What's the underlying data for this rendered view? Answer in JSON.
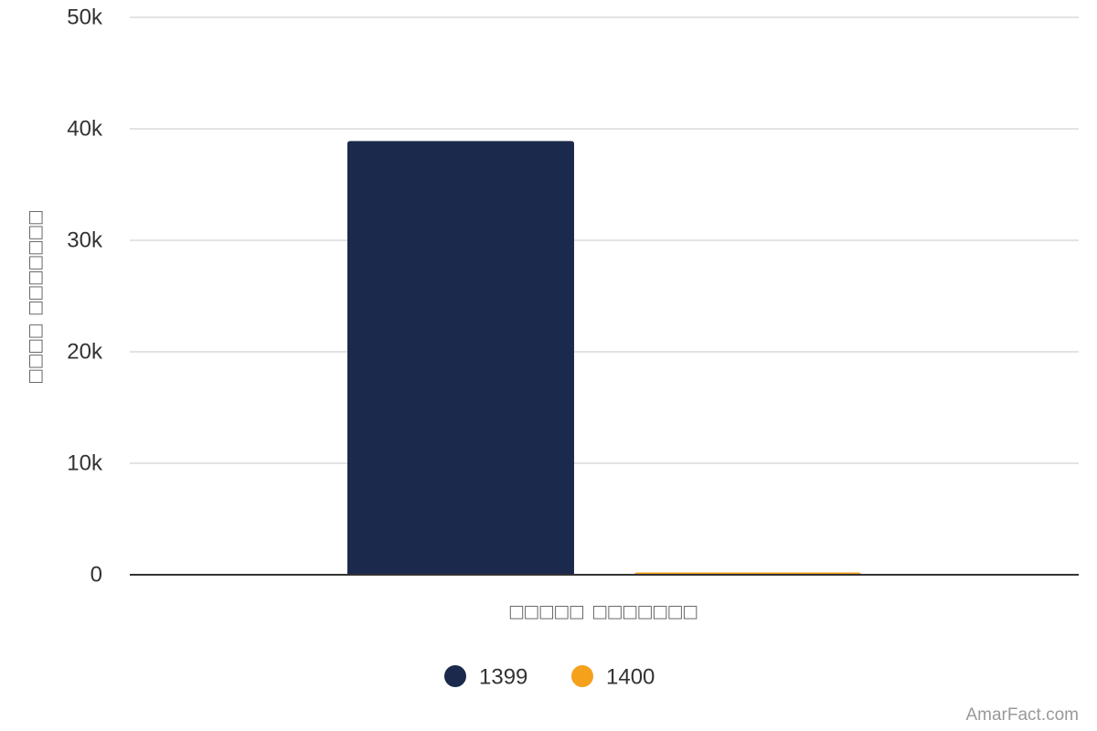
{
  "chart_data": {
    "type": "bar",
    "categories": [
      "□□□□□ □□□□□□□"
    ],
    "x_label": "□□□□□ □□□□□□□",
    "y_label": "□□□□ □□□□□□□",
    "series": [
      {
        "name": "1399",
        "color": "#1b2a4c",
        "values": [
          38900
        ]
      },
      {
        "name": "1400",
        "color": "#f5a11c",
        "values": [
          200
        ]
      }
    ],
    "ylim": [
      0,
      50000
    ],
    "yticks": [
      0,
      {
        "value": 10000,
        "label": "10k"
      },
      {
        "value": 20000,
        "label": "20k"
      },
      {
        "value": 30000,
        "label": "30k"
      },
      {
        "value": 40000,
        "label": "40k"
      },
      {
        "value": 50000,
        "label": "50k"
      }
    ],
    "grid": true,
    "legend": "bottom",
    "watermark": "AmarFact.com"
  }
}
